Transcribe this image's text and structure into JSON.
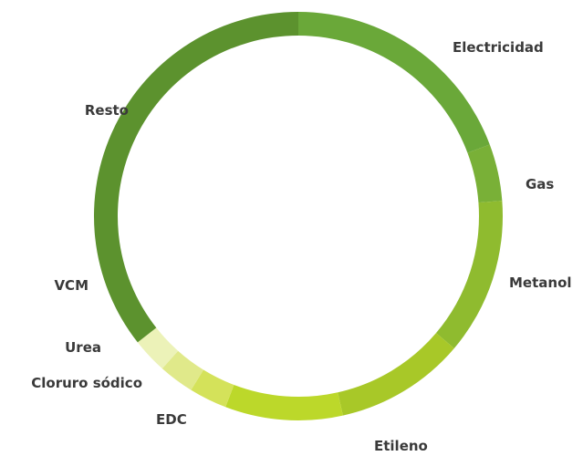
{
  "chart_data": {
    "type": "pie",
    "style": "donut",
    "unit": "percent",
    "start": "top, clockwise",
    "categories": [
      "Electricidad",
      "Gas",
      "Metanol",
      "Etileno",
      "EDC",
      "Cloruro sódico",
      "Urea",
      "VCM",
      "Resto"
    ],
    "values": [
      19.3,
      4.5,
      12.4,
      10.3,
      9.3,
      3.0,
      2.8,
      2.8,
      35.6
    ],
    "colors": [
      "#6aa839",
      "#79b037",
      "#8fbb2f",
      "#a8c828",
      "#bcd82a",
      "#d4e25a",
      "#e0e98a",
      "#ecf2b8",
      "#5c922e"
    ],
    "title": "",
    "legend": "labels beside slices"
  }
}
